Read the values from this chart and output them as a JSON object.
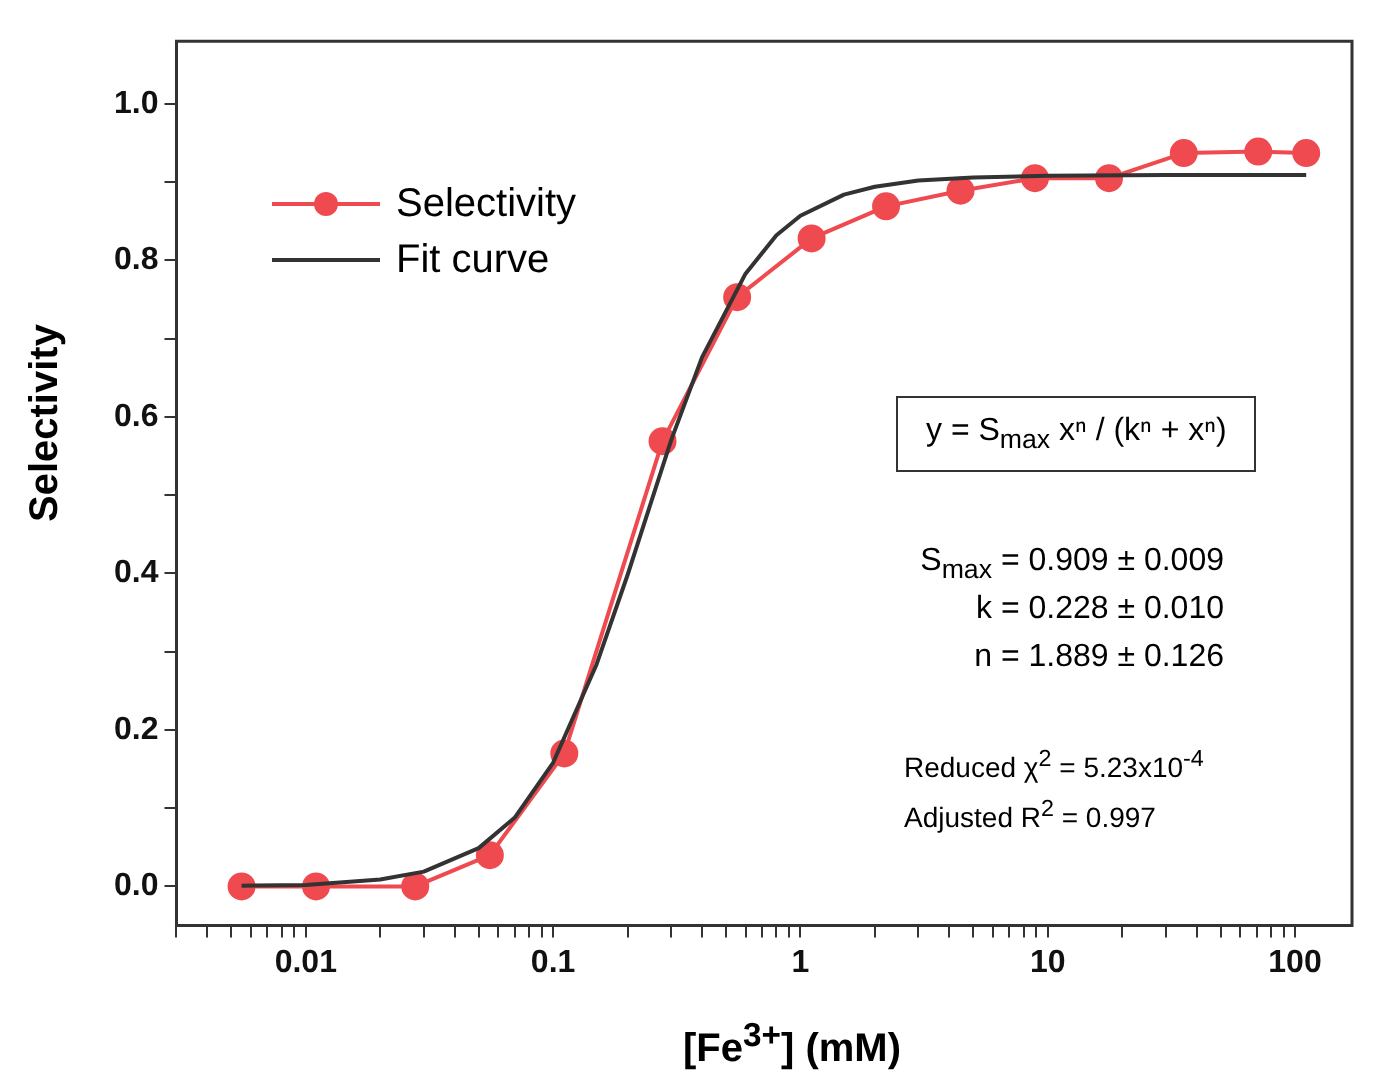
{
  "chart_data": {
    "type": "line",
    "xlabel": "[Fe$^{3+}$] (mM)",
    "ylabel": "Selectivity",
    "log": "x",
    "xlim": [
      0.003,
      170
    ],
    "ylim": [
      -0.05,
      1.08
    ],
    "xticks": [
      {
        "value": 0.003,
        "label": null
      },
      {
        "value": 0.004,
        "label": null
      },
      {
        "value": 0.005,
        "label": null
      },
      {
        "value": 0.006,
        "label": null
      },
      {
        "value": 0.007,
        "label": null
      },
      {
        "value": 0.008,
        "label": null
      },
      {
        "value": 0.009,
        "label": null
      },
      0.01,
      {
        "value": 0.02,
        "label": null
      },
      {
        "value": 0.03,
        "label": null
      },
      {
        "value": 0.04,
        "label": null
      },
      {
        "value": 0.05,
        "label": null
      },
      {
        "value": 0.06,
        "label": null
      },
      {
        "value": 0.07,
        "label": null
      },
      {
        "value": 0.08,
        "label": null
      },
      {
        "value": 0.09,
        "label": null
      },
      0.1,
      {
        "value": 0.2,
        "label": null
      },
      {
        "value": 0.3,
        "label": null
      },
      {
        "value": 0.4,
        "label": null
      },
      {
        "value": 0.5,
        "label": null
      },
      {
        "value": 0.6,
        "label": null
      },
      {
        "value": 0.7,
        "label": null
      },
      {
        "value": 0.8,
        "label": null
      },
      {
        "value": 0.9,
        "label": null
      },
      1,
      {
        "value": 2,
        "label": null
      },
      {
        "value": 3,
        "label": null
      },
      {
        "value": 4,
        "label": null
      },
      {
        "value": 5,
        "label": null
      },
      {
        "value": 6,
        "label": null
      },
      {
        "value": 7,
        "label": null
      },
      {
        "value": 8,
        "label": null
      },
      {
        "value": 9,
        "label": null
      },
      10,
      {
        "value": 20,
        "label": null
      },
      {
        "value": 30,
        "label": null
      },
      {
        "value": 40,
        "label": null
      },
      {
        "value": 50,
        "label": null
      },
      {
        "value": 60,
        "label": null
      },
      {
        "value": 70,
        "label": null
      },
      {
        "value": 80,
        "label": null
      },
      {
        "value": 90,
        "label": null
      },
      100
    ],
    "yticks": [
      {
        "value": 0,
        "label": "0.0"
      },
      {
        "value": 0.1,
        "label": null
      },
      0.2,
      {
        "value": 0.3,
        "label": null
      },
      0.4,
      {
        "value": 0.5,
        "label": null
      },
      0.6,
      {
        "value": 0.7,
        "label": null
      },
      0.8,
      {
        "value": 0.9,
        "label": null
      },
      {
        "value": 1,
        "label": "1.0"
      }
    ],
    "grid": false,
    "legend": "top left",
    "series": [
      {
        "name": "Selectivity",
        "color": "#ef4a4f",
        "marker": "circle",
        "line_style": "solid",
        "x": [
          0.0055,
          0.011,
          0.0277,
          0.0555,
          0.111,
          0.277,
          0.555,
          1.11,
          2.22,
          4.44,
          8.88,
          17.7,
          35.5,
          71,
          111
        ],
        "values": [
          0,
          0,
          0,
          0.04,
          0.17,
          0.569,
          0.753,
          0.828,
          0.869,
          0.889,
          0.905,
          0.905,
          0.937,
          0.939,
          0.937
        ]
      },
      {
        "name": "Fit curve",
        "color": "#333333",
        "marker": "none",
        "line_style": "solid",
        "x": [
          0.0055,
          0.01,
          0.02,
          0.03,
          0.05,
          0.07,
          0.1,
          0.15,
          0.2,
          0.3,
          0.4,
          0.6,
          0.8,
          1,
          1.5,
          2,
          3,
          5,
          10,
          30,
          111
        ],
        "values": [
          0.001,
          0.002,
          0.009,
          0.019,
          0.049,
          0.088,
          0.158,
          0.284,
          0.398,
          0.57,
          0.676,
          0.783,
          0.832,
          0.857,
          0.884,
          0.894,
          0.902,
          0.906,
          0.908,
          0.909,
          0.909
        ]
      }
    ],
    "annotations": [
      "y = S$_{max}$ xⁿ / (kⁿ + xⁿ)",
      "S$_{max}$ = 0.909 ± 0.009",
      "k = 0.228 ± 0.010",
      "n = 1.889 ± 0.126",
      "Reduced χ$^{2}$ = 5.23x10$^{-4}$",
      "Adjusted R$^{2}$ = 0.997"
    ]
  }
}
